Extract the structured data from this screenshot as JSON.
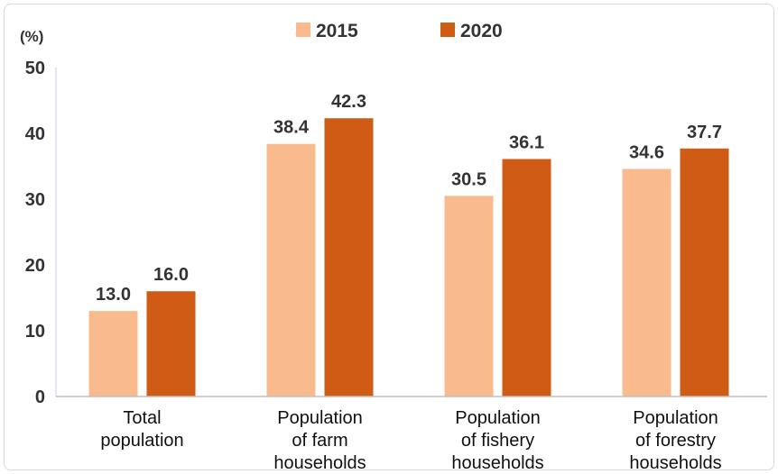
{
  "chart_data": {
    "type": "bar",
    "unit_label": "(%)",
    "categories": [
      [
        "Total",
        "population"
      ],
      [
        "Population",
        "of farm",
        "households"
      ],
      [
        "Population",
        "of fishery",
        "households"
      ],
      [
        "Population",
        "of forestry",
        "households"
      ]
    ],
    "series": [
      {
        "name": "2015",
        "color": "#f9bb8d",
        "values": [
          13.0,
          38.4,
          30.5,
          34.6
        ]
      },
      {
        "name": "2020",
        "color": "#cf5b15",
        "values": [
          16.0,
          42.3,
          36.1,
          37.7
        ]
      }
    ],
    "ylim": [
      0,
      50
    ],
    "yticks": [
      0,
      10,
      20,
      30,
      40,
      50
    ],
    "legend_position": "top-center",
    "grid": false
  }
}
